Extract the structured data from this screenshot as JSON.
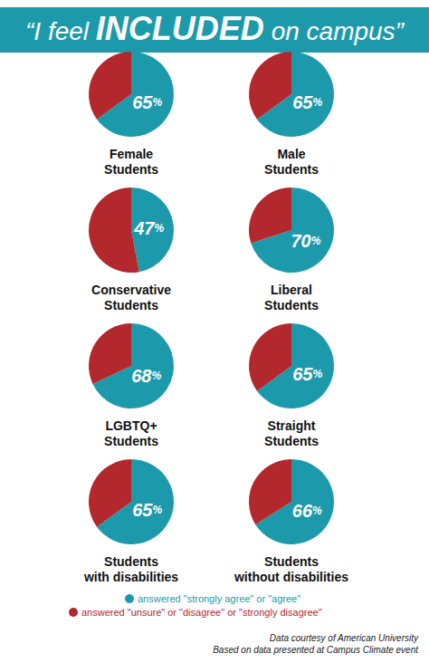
{
  "title": "“I feel INCLUDED on campus”",
  "chart_data": [
    {
      "type": "pie",
      "title": "Female\nStudents",
      "categories": [
        "answered \"strongly agree\" or \"agree\"",
        "answered \"unsure\" or \"disagree\" or \"strongly disagree\""
      ],
      "values": [
        65,
        35
      ],
      "colors": [
        "#1c9aab",
        "#b3282d"
      ],
      "data_labels": true,
      "value_labels": [
        "65%",
        null
      ]
    },
    {
      "type": "pie",
      "title": "Male\nStudents",
      "categories": [
        "answered \"strongly agree\" or \"agree\"",
        "answered \"unsure\" or \"disagree\" or \"strongly disagree\""
      ],
      "values": [
        65,
        35
      ],
      "colors": [
        "#1c9aab",
        "#b3282d"
      ],
      "data_labels": true,
      "value_labels": [
        "65%",
        null
      ]
    },
    {
      "type": "pie",
      "title": "Conservative\nStudents",
      "categories": [
        "answered \"strongly agree\" or \"agree\"",
        "answered \"unsure\" or \"disagree\" or \"strongly disagree\""
      ],
      "values": [
        47,
        53
      ],
      "colors": [
        "#1c9aab",
        "#b3282d"
      ],
      "data_labels": true,
      "value_labels": [
        "47%",
        null
      ]
    },
    {
      "type": "pie",
      "title": "Liberal\nStudents",
      "categories": [
        "answered \"strongly agree\" or \"agree\"",
        "answered \"unsure\" or \"disagree\" or \"strongly disagree\""
      ],
      "values": [
        70,
        30
      ],
      "colors": [
        "#1c9aab",
        "#b3282d"
      ],
      "data_labels": true,
      "value_labels": [
        "70%",
        null
      ]
    },
    {
      "type": "pie",
      "title": "LGBTQ+\nStudents",
      "categories": [
        "answered \"strongly agree\" or \"agree\"",
        "answered \"unsure\" or \"disagree\" or \"strongly disagree\""
      ],
      "values": [
        68,
        32
      ],
      "colors": [
        "#1c9aab",
        "#b3282d"
      ],
      "data_labels": true,
      "value_labels": [
        "68%",
        null
      ]
    },
    {
      "type": "pie",
      "title": "Straight\nStudents",
      "categories": [
        "answered \"strongly agree\" or \"agree\"",
        "answered \"unsure\" or \"disagree\" or \"strongly disagree\""
      ],
      "values": [
        65,
        35
      ],
      "colors": [
        "#1c9aab",
        "#b3282d"
      ],
      "data_labels": true,
      "value_labels": [
        "65%",
        null
      ]
    },
    {
      "type": "pie",
      "title": "Students\nwith disabilities",
      "categories": [
        "answered \"strongly agree\" or \"agree\"",
        "answered \"unsure\" or \"disagree\" or \"strongly disagree\""
      ],
      "values": [
        65,
        35
      ],
      "colors": [
        "#1c9aab",
        "#b3282d"
      ],
      "data_labels": true,
      "value_labels": [
        "65%",
        null
      ]
    },
    {
      "type": "pie",
      "title": "Students\nwithout disabilities",
      "categories": [
        "answered \"strongly agree\" or \"agree\"",
        "answered \"unsure\" or \"disagree\" or \"strongly disagree\""
      ],
      "values": [
        66,
        34
      ],
      "colors": [
        "#1c9aab",
        "#b3282d"
      ],
      "data_labels": true,
      "value_labels": [
        "66%",
        null
      ]
    }
  ],
  "source": [
    "Data courtesy of American University",
    "Based on data presented at Campus Climate event"
  ]
}
